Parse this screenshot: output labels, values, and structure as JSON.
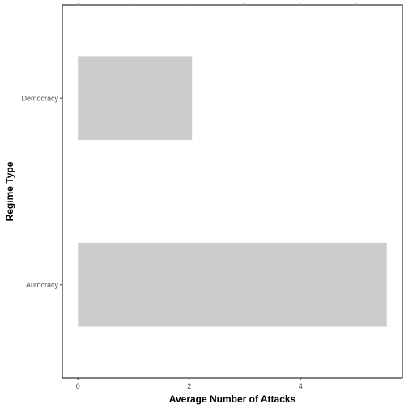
{
  "chart_data": {
    "type": "bar",
    "orientation": "horizontal",
    "xlabel": "Average Number of Attacks",
    "ylabel": "Regime Type",
    "categories": [
      "Autocracy",
      "Democracy"
    ],
    "values": [
      5.55,
      2.05
    ],
    "xlim": [
      -0.28,
      5.83
    ],
    "xticks": [
      0,
      2,
      4
    ],
    "xtick_labels": [
      "0",
      "2",
      "4"
    ],
    "grid": false,
    "legend": "none",
    "bar_color": "#cccccc",
    "frame_color": "#000000"
  }
}
